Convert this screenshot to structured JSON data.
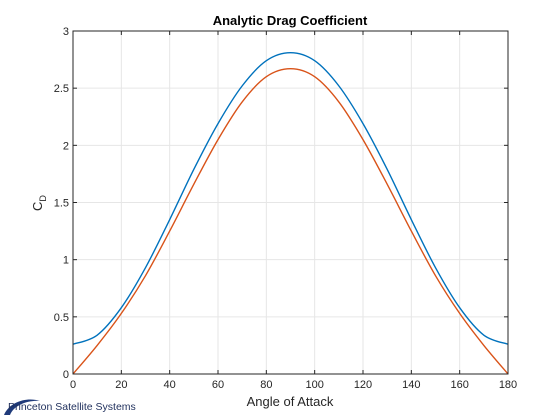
{
  "chart_data": {
    "type": "line",
    "title": "Analytic Drag Coefficient",
    "xlabel": "Angle of Attack",
    "ylabel": "C",
    "ylabel_subscript": "D",
    "xlim": [
      0,
      180
    ],
    "ylim": [
      0,
      3
    ],
    "xticks": [
      "0",
      "20",
      "40",
      "60",
      "80",
      "100",
      "120",
      "140",
      "160",
      "180"
    ],
    "yticks": [
      "0",
      "0.5",
      "1",
      "1.5",
      "2",
      "2.5",
      "3"
    ],
    "grid": true,
    "x": [
      0,
      10,
      20,
      30,
      40,
      50,
      60,
      70,
      80,
      90,
      100,
      110,
      120,
      130,
      140,
      150,
      160,
      170,
      180
    ],
    "series": [
      {
        "color": "#0072BD",
        "values": [
          0.26,
          0.34,
          0.58,
          0.93,
          1.35,
          1.79,
          2.19,
          2.52,
          2.74,
          2.81,
          2.74,
          2.52,
          2.19,
          1.79,
          1.35,
          0.93,
          0.58,
          0.34,
          0.26
        ]
      },
      {
        "color": "#D95319",
        "values": [
          0.0,
          0.25,
          0.53,
          0.86,
          1.25,
          1.66,
          2.05,
          2.38,
          2.6,
          2.67,
          2.6,
          2.38,
          2.05,
          1.66,
          1.25,
          0.86,
          0.53,
          0.25,
          0.0
        ]
      }
    ]
  },
  "footer": {
    "logo_icon": "swoosh-logo-icon",
    "text": "Princeton Satellite Systems"
  }
}
